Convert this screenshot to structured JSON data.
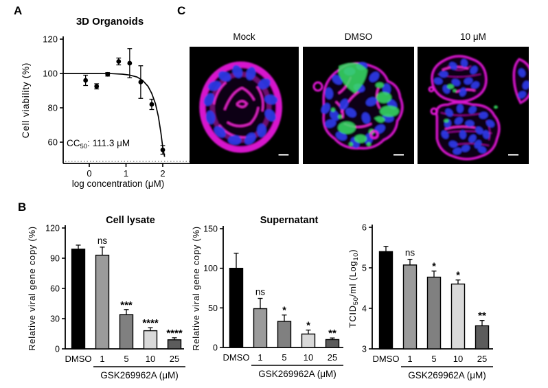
{
  "panels": {
    "a": {
      "letter": "A"
    },
    "b": {
      "letter": "B"
    },
    "c": {
      "letter": "C",
      "images": [
        {
          "label": "Mock"
        },
        {
          "label": "DMSO"
        },
        {
          "label": "10 μM"
        }
      ],
      "colors": {
        "membrane": "#e318d8",
        "nuclei": "#2b3ae8",
        "infection": "#3ae065",
        "background": "#000000",
        "scale_bar": "#cfcfcf"
      }
    }
  },
  "chart_data": [
    {
      "id": "viability",
      "type": "scatter",
      "title": "3D Organoids",
      "xlabel": "log concentration (μM)",
      "ylabel": "Cell viability (%)",
      "annotation_parts": [
        {
          "t": "CC"
        },
        {
          "t": "50",
          "sub": true
        },
        {
          "t": ": 111.3 μM"
        }
      ],
      "xticks": [
        0,
        1,
        2
      ],
      "yticks": [
        60,
        80,
        100,
        120
      ],
      "xlim": [
        -0.7,
        2.3
      ],
      "ylim": [
        47,
        122
      ],
      "points": [
        {
          "x": -0.1,
          "y": 96,
          "err": 3
        },
        {
          "x": 0.2,
          "y": 92.5,
          "err": 1.5
        },
        {
          "x": 0.5,
          "y": 99.5,
          "err": 1
        },
        {
          "x": 0.8,
          "y": 107,
          "err": 2
        },
        {
          "x": 1.1,
          "y": 106,
          "err": 8.5
        },
        {
          "x": 1.4,
          "y": 95,
          "err": 9.5
        },
        {
          "x": 1.7,
          "y": 82,
          "err": 3
        },
        {
          "x": 2.0,
          "y": 55.5,
          "err": 2.5
        }
      ],
      "curve": [
        [
          -0.71,
          100
        ],
        [
          0.2,
          100
        ],
        [
          0.6,
          99.9
        ],
        [
          0.9,
          99.6
        ],
        [
          1.1,
          99.1
        ],
        [
          1.3,
          97.9
        ],
        [
          1.45,
          96
        ],
        [
          1.6,
          92.5
        ],
        [
          1.7,
          88.5
        ],
        [
          1.8,
          82.5
        ],
        [
          1.88,
          75
        ],
        [
          1.95,
          65.5
        ],
        [
          2.0,
          57
        ],
        [
          2.05,
          51.5
        ]
      ]
    },
    {
      "id": "lysate",
      "type": "bar",
      "title": "Cell lysate",
      "ylabel": "Relative viral gene copy (%)",
      "categories": [
        "DMSO",
        "1",
        "5",
        "10",
        "25"
      ],
      "values": [
        99,
        93,
        34,
        18,
        9
      ],
      "errors": [
        4,
        8,
        5,
        3,
        2
      ],
      "sig": [
        "",
        "ns",
        "***",
        "****",
        "****"
      ],
      "bar_colors": [
        "#000000",
        "#9b9b9b",
        "#808080",
        "#d9d9d9",
        "#5c5c5c"
      ],
      "yticks": [
        0,
        30,
        60,
        90,
        120
      ],
      "ylim": [
        0,
        120
      ],
      "group_label": "GSK269962A (μM)"
    },
    {
      "id": "supernatant",
      "type": "bar",
      "title": "Supernatant",
      "ylabel": "Relative viral gene copy (%)",
      "categories": [
        "DMSO",
        "1",
        "5",
        "10",
        "25"
      ],
      "values": [
        100,
        49,
        33,
        17,
        10
      ],
      "errors": [
        19,
        13,
        8,
        5,
        2
      ],
      "sig": [
        "",
        "ns",
        "*",
        "*",
        "**"
      ],
      "bar_colors": [
        "#000000",
        "#9b9b9b",
        "#808080",
        "#d9d9d9",
        "#5c5c5c"
      ],
      "yticks": [
        0,
        50,
        100,
        150
      ],
      "ylim": [
        0,
        150
      ],
      "group_label": "GSK269962A (μM)"
    },
    {
      "id": "tcid",
      "type": "bar",
      "title": "",
      "ylabel_parts": [
        {
          "t": "TCID"
        },
        {
          "t": "50",
          "sub": true
        },
        {
          "t": "/ml (Log"
        },
        {
          "t": "10",
          "sub": true
        },
        {
          "t": ")"
        }
      ],
      "categories": [
        "DMSO",
        "1",
        "5",
        "10",
        "25"
      ],
      "values": [
        5.4,
        5.07,
        4.77,
        4.6,
        3.57
      ],
      "errors": [
        0.13,
        0.14,
        0.15,
        0.1,
        0.13
      ],
      "sig": [
        "",
        "ns",
        "*",
        "*",
        "**"
      ],
      "bar_colors": [
        "#000000",
        "#9b9b9b",
        "#808080",
        "#d9d9d9",
        "#5c5c5c"
      ],
      "yticks": [
        3,
        4,
        5,
        6
      ],
      "ylim": [
        3,
        6
      ],
      "group_label": "GSK269962A (μM)"
    }
  ]
}
